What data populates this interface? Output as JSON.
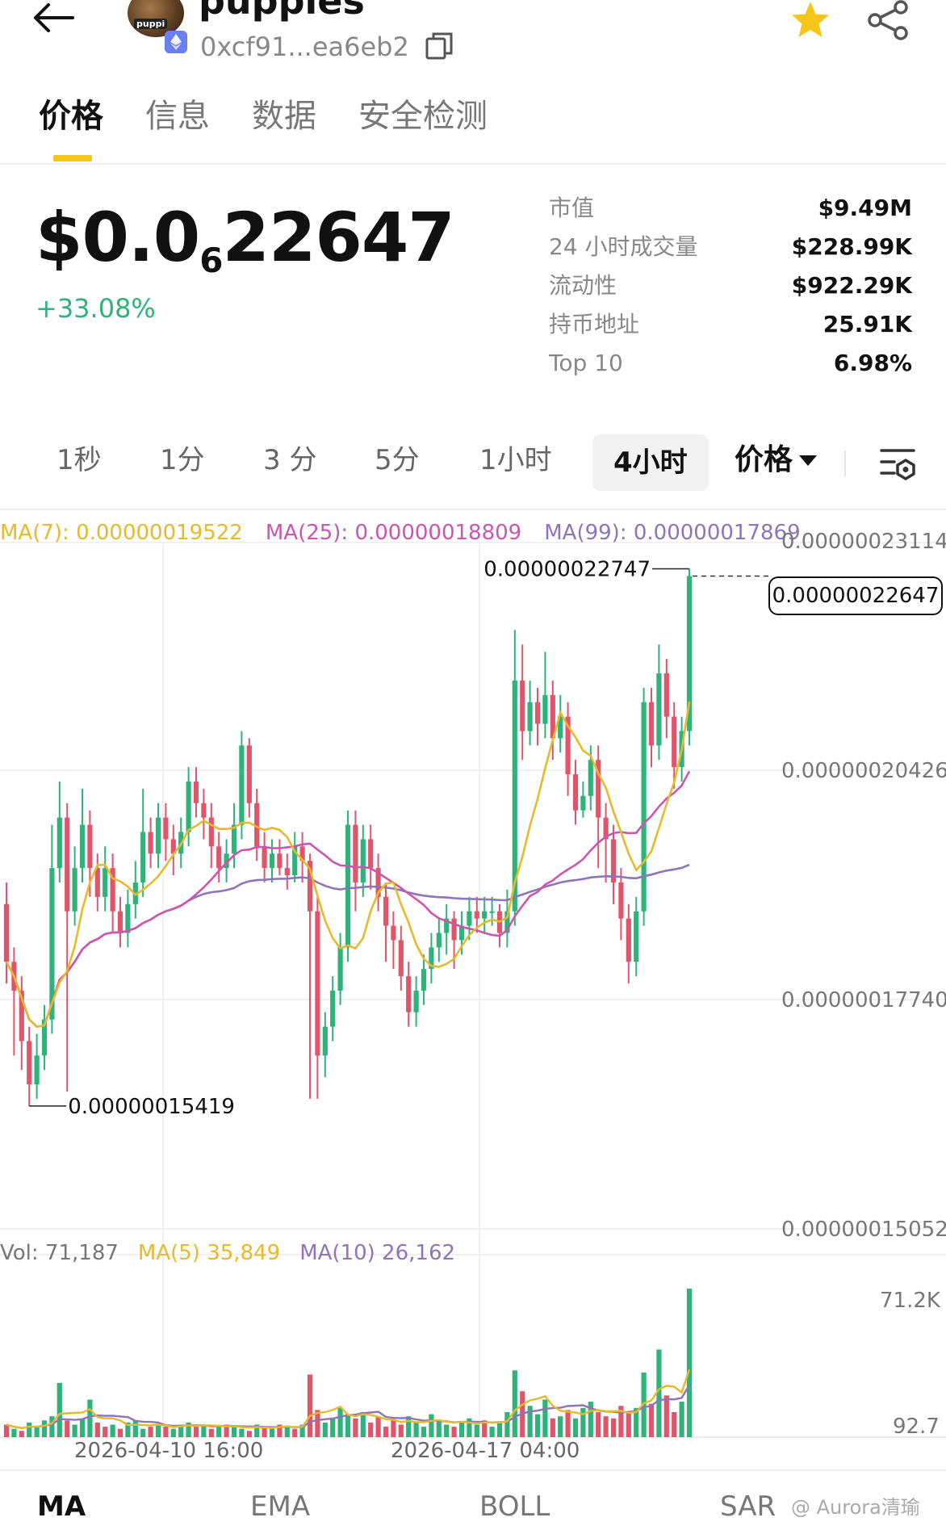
{
  "header": {
    "token_name": "puppies",
    "avatar_text": "puppi",
    "address": "0xcf91...ea6eb2",
    "icons": [
      "back-arrow-icon",
      "ethereum-icon",
      "copy-icon",
      "star-icon",
      "share-icon"
    ],
    "accent_color": "#f5c518"
  },
  "tabs": [
    {
      "label": "价格"
    },
    {
      "label": "信息"
    },
    {
      "label": "数据"
    },
    {
      "label": "安全检测"
    }
  ],
  "price": {
    "prefix": "$0.0",
    "zero_count": "6",
    "digits": "22647",
    "change": "+33.08%",
    "change_color": "#2eb37a"
  },
  "stats": [
    {
      "label": "市值",
      "value": "$9.49M"
    },
    {
      "label": "24 小时成交量",
      "value": "$228.99K"
    },
    {
      "label": "流动性",
      "value": "$922.29K"
    },
    {
      "label": "持币地址",
      "value": "25.91K"
    },
    {
      "label": "Top 10",
      "value": "6.98%"
    }
  ],
  "intervals": [
    "1秒",
    "1分",
    "3 分",
    "5分",
    "1小时",
    "4小时"
  ],
  "interval_selected": "4小时",
  "price_dropdown": "价格",
  "ma_legend": {
    "ma7": "MA(7): 0.00000019522",
    "ma25": "MA(25): 0.00000018809",
    "ma99": "MA(99): 0.00000017869"
  },
  "price_axis": [
    "0.00000023114",
    "0.00000020426",
    "0.00000017740",
    "0.00000015052"
  ],
  "annotations": {
    "high": "0.00000022747",
    "low": "0.00000015419",
    "current": "0.00000022647"
  },
  "vol_legend": {
    "vol": "Vol: 71,187",
    "ma5": "MA(5) 35,849",
    "ma10": "MA(10) 26,162"
  },
  "vol_axis": [
    "71.2K",
    "92.7"
  ],
  "time_axis": [
    "2026-04-10 16:00",
    "2026-04-17 04:00"
  ],
  "indicator_tabs": [
    "MA",
    "EMA",
    "BOLL",
    "SAR"
  ],
  "watermark": "@ Aurora清瑜",
  "colors": {
    "up": "#2eb37a",
    "down": "#e05569",
    "ma7": "#e7b92c",
    "ma25": "#cc55b0",
    "ma99": "#8c75b9"
  },
  "chart_data": {
    "type": "candlestick",
    "series": [
      {
        "name": "MA(7)"
      },
      {
        "name": "MA(25)"
      },
      {
        "name": "MA(99)"
      }
    ],
    "ylim": [
      1.5052e-07,
      2.3114e-07
    ],
    "candles": [
      [
        1.81,
        1.73,
        1.84,
        1.7
      ],
      [
        1.73,
        1.69,
        1.75,
        1.6
      ],
      [
        1.69,
        1.62,
        1.71,
        1.58
      ],
      [
        1.62,
        1.56,
        1.64,
        1.53
      ],
      [
        1.56,
        1.6,
        1.63,
        1.54
      ],
      [
        1.6,
        1.65,
        1.67,
        1.58
      ],
      [
        1.65,
        1.86,
        1.92,
        1.63
      ],
      [
        1.86,
        1.93,
        1.98,
        1.84
      ],
      [
        1.93,
        1.8,
        1.95,
        1.55
      ],
      [
        1.8,
        1.86,
        1.89,
        1.78
      ],
      [
        1.86,
        1.92,
        1.97,
        1.84
      ],
      [
        1.92,
        1.86,
        1.94,
        1.82
      ],
      [
        1.86,
        1.82,
        1.88,
        1.8
      ],
      [
        1.82,
        1.86,
        1.89,
        1.8
      ],
      [
        1.86,
        1.8,
        1.88,
        1.77
      ],
      [
        1.8,
        1.77,
        1.82,
        1.75
      ],
      [
        1.77,
        1.81,
        1.83,
        1.75
      ],
      [
        1.81,
        1.84,
        1.87,
        1.79
      ],
      [
        1.84,
        1.91,
        1.97,
        1.82
      ],
      [
        1.91,
        1.88,
        1.93,
        1.86
      ],
      [
        1.88,
        1.93,
        1.95,
        1.86
      ],
      [
        1.93,
        1.9,
        1.95,
        1.87
      ],
      [
        1.9,
        1.88,
        1.92,
        1.85
      ],
      [
        1.88,
        1.91,
        1.93,
        1.86
      ],
      [
        1.91,
        1.98,
        2.0,
        1.89
      ],
      [
        1.98,
        1.95,
        2.0,
        1.93
      ],
      [
        1.95,
        1.93,
        1.97,
        1.9
      ],
      [
        1.93,
        1.89,
        1.95,
        1.86
      ],
      [
        1.89,
        1.86,
        1.91,
        1.84
      ],
      [
        1.86,
        1.88,
        1.9,
        1.84
      ],
      [
        1.88,
        1.92,
        1.95,
        1.86
      ],
      [
        1.92,
        2.03,
        2.05,
        1.9
      ],
      [
        2.03,
        1.95,
        2.04,
        1.93
      ],
      [
        1.95,
        1.89,
        1.97,
        1.87
      ],
      [
        1.89,
        1.86,
        1.91,
        1.84
      ],
      [
        1.86,
        1.88,
        1.9,
        1.84
      ],
      [
        1.88,
        1.86,
        1.9,
        1.85
      ],
      [
        1.86,
        1.85,
        1.88,
        1.83
      ],
      [
        1.85,
        1.89,
        1.91,
        1.84
      ],
      [
        1.89,
        1.87,
        1.91,
        1.84
      ],
      [
        1.87,
        1.8,
        1.88,
        1.54
      ],
      [
        1.8,
        1.6,
        1.82,
        1.54
      ],
      [
        1.6,
        1.64,
        1.66,
        1.57
      ],
      [
        1.64,
        1.69,
        1.71,
        1.62
      ],
      [
        1.69,
        1.75,
        1.77,
        1.67
      ],
      [
        1.75,
        1.92,
        1.94,
        1.73
      ],
      [
        1.92,
        1.84,
        1.94,
        1.8
      ],
      [
        1.84,
        1.9,
        1.92,
        1.82
      ],
      [
        1.9,
        1.86,
        1.92,
        1.83
      ],
      [
        1.86,
        1.82,
        1.88,
        1.8
      ],
      [
        1.82,
        1.78,
        1.84,
        1.73
      ],
      [
        1.78,
        1.76,
        1.8,
        1.72
      ],
      [
        1.76,
        1.71,
        1.78,
        1.69
      ],
      [
        1.71,
        1.66,
        1.73,
        1.64
      ],
      [
        1.66,
        1.69,
        1.71,
        1.64
      ],
      [
        1.69,
        1.72,
        1.74,
        1.67
      ],
      [
        1.72,
        1.75,
        1.77,
        1.7
      ],
      [
        1.75,
        1.77,
        1.79,
        1.73
      ],
      [
        1.77,
        1.79,
        1.81,
        1.74
      ],
      [
        1.79,
        1.76,
        1.8,
        1.72
      ],
      [
        1.76,
        1.78,
        1.8,
        1.74
      ],
      [
        1.78,
        1.8,
        1.82,
        1.76
      ],
      [
        1.8,
        1.79,
        1.82,
        1.77
      ],
      [
        1.79,
        1.8,
        1.82,
        1.77
      ],
      [
        1.8,
        1.8,
        1.82,
        1.78
      ],
      [
        1.8,
        1.77,
        1.81,
        1.75
      ],
      [
        1.77,
        1.8,
        1.83,
        1.75
      ],
      [
        1.8,
        2.12,
        2.19,
        1.78
      ],
      [
        2.12,
        2.05,
        2.17,
        2.01
      ],
      [
        2.05,
        2.09,
        2.12,
        2.03
      ],
      [
        2.09,
        2.06,
        2.11,
        2.03
      ],
      [
        2.06,
        2.1,
        2.16,
        2.04
      ],
      [
        2.1,
        2.04,
        2.12,
        2.01
      ],
      [
        2.04,
        2.07,
        2.1,
        2.02
      ],
      [
        2.07,
        1.99,
        2.09,
        1.96
      ],
      [
        1.99,
        1.94,
        2.01,
        1.92
      ],
      [
        1.94,
        1.96,
        1.98,
        1.93
      ],
      [
        1.96,
        2.01,
        2.03,
        1.94
      ],
      [
        2.01,
        1.93,
        2.03,
        1.86
      ],
      [
        1.93,
        1.9,
        1.95,
        1.84
      ],
      [
        1.9,
        1.84,
        1.92,
        1.81
      ],
      [
        1.84,
        1.79,
        1.86,
        1.76
      ],
      [
        1.79,
        1.73,
        1.81,
        1.7
      ],
      [
        1.73,
        1.8,
        1.82,
        1.71
      ],
      [
        1.8,
        2.09,
        2.11,
        1.78
      ],
      [
        2.09,
        2.03,
        2.11,
        2.0
      ],
      [
        2.03,
        2.13,
        2.17,
        2.01
      ],
      [
        2.13,
        2.07,
        2.15,
        2.04
      ],
      [
        2.07,
        2.0,
        2.09,
        1.97
      ],
      [
        2.0,
        2.05,
        2.07,
        1.98
      ],
      [
        2.05,
        2.265,
        2.275,
        2.03
      ]
    ],
    "volume": [
      [
        6,
        0
      ],
      [
        4,
        1
      ],
      [
        3,
        0
      ],
      [
        7,
        1
      ],
      [
        5,
        1
      ],
      [
        8,
        1
      ],
      [
        10,
        1
      ],
      [
        26,
        1
      ],
      [
        8,
        0
      ],
      [
        6,
        1
      ],
      [
        9,
        1
      ],
      [
        18,
        1
      ],
      [
        7,
        0
      ],
      [
        5,
        0
      ],
      [
        6,
        1
      ],
      [
        4,
        0
      ],
      [
        7,
        1
      ],
      [
        8,
        1
      ],
      [
        4,
        1
      ],
      [
        5,
        0
      ],
      [
        6,
        1
      ],
      [
        5,
        0
      ],
      [
        4,
        1
      ],
      [
        6,
        1
      ],
      [
        7,
        1
      ],
      [
        5,
        0
      ],
      [
        6,
        1
      ],
      [
        4,
        0
      ],
      [
        5,
        1
      ],
      [
        6,
        0
      ],
      [
        5,
        1
      ],
      [
        4,
        1
      ],
      [
        3,
        0
      ],
      [
        6,
        1
      ],
      [
        5,
        0
      ],
      [
        4,
        1
      ],
      [
        6,
        0
      ],
      [
        5,
        1
      ],
      [
        4,
        0
      ],
      [
        6,
        1
      ],
      [
        30,
        0
      ],
      [
        13,
        0
      ],
      [
        7,
        1
      ],
      [
        9,
        1
      ],
      [
        14,
        1
      ],
      [
        11,
        1
      ],
      [
        9,
        0
      ],
      [
        12,
        1
      ],
      [
        7,
        0
      ],
      [
        10,
        0
      ],
      [
        5,
        0
      ],
      [
        8,
        0
      ],
      [
        6,
        0
      ],
      [
        10,
        1
      ],
      [
        7,
        1
      ],
      [
        5,
        1
      ],
      [
        11,
        1
      ],
      [
        8,
        1
      ],
      [
        6,
        1
      ],
      [
        5,
        0
      ],
      [
        7,
        1
      ],
      [
        9,
        1
      ],
      [
        6,
        1
      ],
      [
        8,
        0
      ],
      [
        5,
        1
      ],
      [
        7,
        1
      ],
      [
        12,
        1
      ],
      [
        32,
        1
      ],
      [
        22,
        0
      ],
      [
        15,
        1
      ],
      [
        11,
        1
      ],
      [
        18,
        1
      ],
      [
        9,
        0
      ],
      [
        10,
        1
      ],
      [
        13,
        0
      ],
      [
        9,
        1
      ],
      [
        14,
        1
      ],
      [
        17,
        1
      ],
      [
        12,
        0
      ],
      [
        10,
        0
      ],
      [
        9,
        0
      ],
      [
        15,
        0
      ],
      [
        12,
        0
      ],
      [
        14,
        1
      ],
      [
        31,
        1
      ],
      [
        16,
        0
      ],
      [
        42,
        1
      ],
      [
        20,
        0
      ],
      [
        12,
        0
      ],
      [
        17,
        1
      ],
      [
        71.2,
        1
      ]
    ]
  }
}
